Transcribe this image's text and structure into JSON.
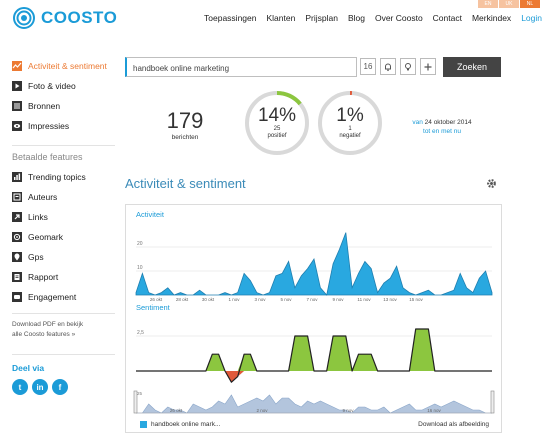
{
  "header": {
    "brand": "COOSTO",
    "languages": [
      "EN",
      "UK",
      "NL"
    ],
    "nav": [
      "Toepassingen",
      "Klanten",
      "Prijsplan",
      "Blog",
      "Over Coosto",
      "Contact",
      "Merkindex"
    ],
    "login": "Login"
  },
  "sidebar": {
    "items": [
      {
        "label": "Activiteit & sentiment",
        "icon": "activity-icon",
        "active": true
      },
      {
        "label": "Foto & video",
        "icon": "play-icon",
        "active": false
      },
      {
        "label": "Bronnen",
        "icon": "sources-icon",
        "active": false
      },
      {
        "label": "Impressies",
        "icon": "eye-icon",
        "active": false
      }
    ],
    "paid_title": "Betaalde features",
    "paid_items": [
      {
        "label": "Trending topics",
        "icon": "trending-icon"
      },
      {
        "label": "Auteurs",
        "icon": "authors-icon"
      },
      {
        "label": "Links",
        "icon": "link-icon"
      },
      {
        "label": "Geomark",
        "icon": "geomark-icon"
      },
      {
        "label": "Gps",
        "icon": "gps-icon"
      },
      {
        "label": "Rapport",
        "icon": "report-icon"
      },
      {
        "label": "Engagement",
        "icon": "engagement-icon"
      }
    ],
    "download_line1": "Download PDF en bekijk",
    "download_line2": "alle Coosto features »",
    "share_title": "Deel via",
    "share": [
      {
        "label": "t",
        "icon": "twitter-icon"
      },
      {
        "label": "in",
        "icon": "linkedin-icon"
      },
      {
        "label": "f",
        "icon": "facebook-icon"
      }
    ]
  },
  "search": {
    "value": "handboek online marketing",
    "calendar_day": "16",
    "button": "Zoeken"
  },
  "stats": {
    "count": "179",
    "count_label": "berichten",
    "positive_pct": "14%",
    "positive_count": "25",
    "positive_label": "positief",
    "positive_fraction": 0.14,
    "negative_pct": "1%",
    "negative_count": "1",
    "negative_label": "negatief",
    "negative_fraction": 0.01,
    "date_prefix": "van",
    "date": "24 oktober 2014",
    "date_suffix": "tot en met nu"
  },
  "section": {
    "title": "Activiteit & sentiment"
  },
  "chart_data": [
    {
      "type": "area",
      "title": "Activiteit",
      "y_ticks": [
        "20",
        "10"
      ],
      "x_labels": [
        "26 okt",
        "28 okt",
        "30 okt",
        "1 nov",
        "3 nov",
        "5 nov",
        "7 nov",
        "9 nov",
        "11 nov",
        "13 nov",
        "15 nov"
      ],
      "ylim": [
        0,
        30
      ],
      "values": [
        1,
        9,
        1,
        0,
        1,
        3,
        0,
        1,
        0,
        0,
        2,
        0,
        0,
        0,
        1,
        0,
        1,
        9,
        6,
        1,
        0,
        1,
        8,
        9,
        14,
        3,
        8,
        11,
        15,
        3,
        0,
        13,
        19,
        26,
        3,
        9,
        14,
        11,
        1,
        5,
        7,
        12,
        3,
        1,
        0,
        1,
        2,
        0,
        0,
        1,
        2,
        9,
        3,
        1,
        7,
        10,
        1
      ],
      "color": "#29a8e0"
    },
    {
      "type": "area",
      "title": "Sentiment",
      "y_ticks": [
        "2,5"
      ],
      "ylim": [
        -1,
        4
      ],
      "values": [
        0,
        0,
        0,
        0,
        0,
        0,
        0,
        0,
        0,
        0,
        0,
        0,
        1.2,
        1.2,
        0,
        -0.8,
        -0.4,
        1.2,
        1.2,
        0,
        0,
        0,
        0,
        0,
        0,
        2.5,
        2.5,
        2.5,
        0,
        0,
        0,
        2.5,
        2.5,
        2.5,
        0,
        1.2,
        1.2,
        1.2,
        0,
        0,
        0,
        0,
        0,
        0,
        3.0,
        3.0,
        3.0,
        0,
        0,
        0,
        0,
        0,
        0,
        0,
        0,
        0,
        0
      ],
      "positive_color": "#8cc63f",
      "negative_color": "#e05a3a"
    },
    {
      "type": "area",
      "title": "",
      "y_ticks": [
        "25"
      ],
      "x_labels": [
        "26 okt",
        "2 nov",
        "9 nov",
        "16 nov"
      ],
      "values": [
        0,
        0,
        3,
        1,
        0,
        2,
        1,
        1,
        0,
        3,
        2,
        1,
        2,
        4,
        3,
        6,
        2,
        3,
        4,
        5,
        4,
        6,
        3,
        5,
        5,
        3,
        2,
        4,
        3,
        4,
        3,
        2,
        1,
        1,
        0,
        2,
        2,
        1,
        1,
        2,
        0,
        1,
        2,
        3,
        1,
        1,
        2,
        3,
        2,
        3,
        4,
        3,
        2,
        1,
        1,
        0,
        0
      ],
      "color": "#b3c5dd"
    }
  ],
  "chart_legend": "handboek online mark...",
  "chart_download": "Download als afbeelding",
  "colors": {
    "accent": "#1b9bd7",
    "active": "#ec7a33",
    "positive": "#8cc63f",
    "negative": "#e05a3a"
  }
}
